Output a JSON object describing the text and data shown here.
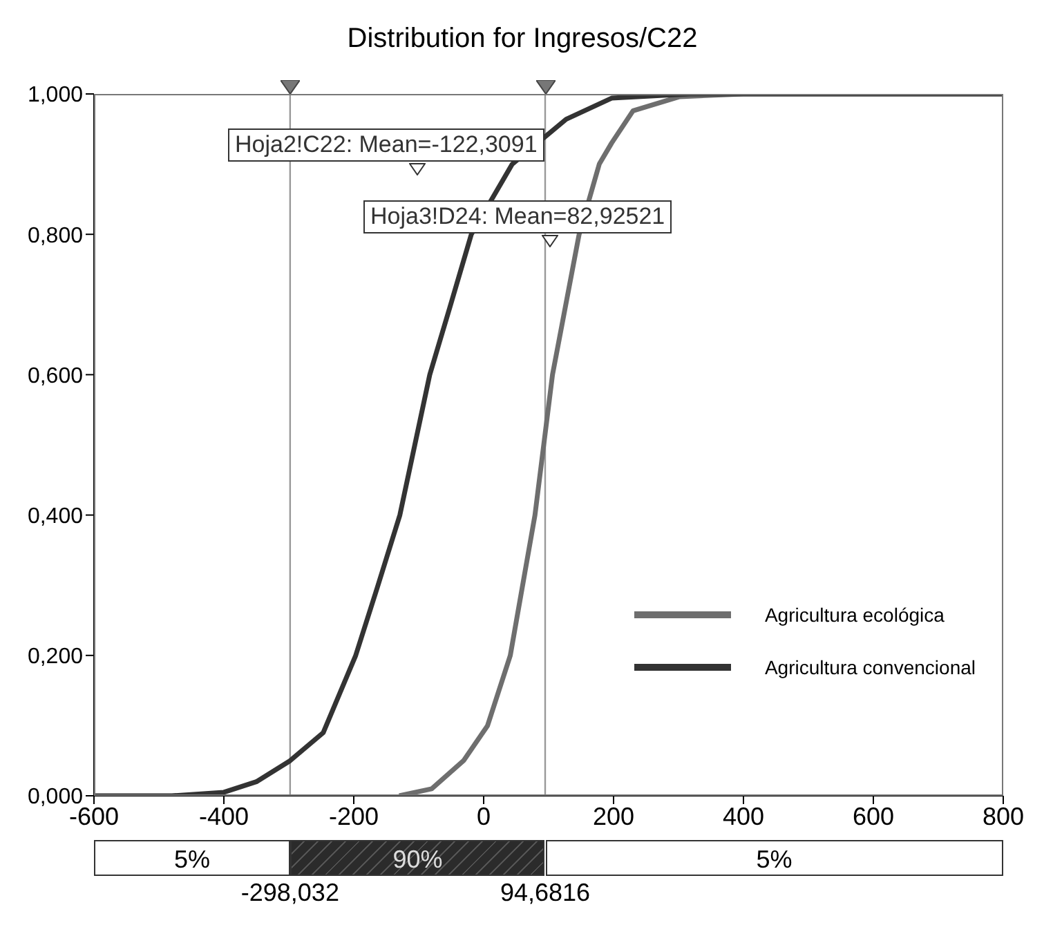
{
  "chart_data": {
    "type": "line",
    "title": "Distribution for Ingresos/C22",
    "series": [
      {
        "name": "Agricultura ecológica",
        "color": "#6e6e6e",
        "x": [
          -130,
          -80,
          -31,
          6,
          41,
          79,
          106,
          147,
          178,
          197,
          230,
          301,
          400,
          800
        ],
        "values": [
          0,
          0.01,
          0.05,
          0.1,
          0.2,
          0.4,
          0.6,
          0.8,
          0.9,
          0.93,
          0.976,
          0.996,
          1,
          1
        ]
      },
      {
        "name": "Agricultura convencional",
        "color": "#333333",
        "x": [
          -600,
          -480,
          -400,
          -350,
          -298,
          -247,
          -197,
          -164,
          -129,
          -83,
          -52,
          -19,
          44,
          127,
          197,
          317,
          400,
          800
        ],
        "values": [
          0,
          0,
          0.005,
          0.02,
          0.05,
          0.09,
          0.2,
          0.296,
          0.4,
          0.6,
          0.696,
          0.8,
          0.9,
          0.964,
          0.994,
          1,
          1,
          1
        ]
      }
    ],
    "xlim": [
      -600,
      800
    ],
    "xticks": [
      -600,
      -400,
      -200,
      0,
      200,
      400,
      600,
      800
    ],
    "ylim": [
      0,
      1
    ],
    "yticks": [
      {
        "value": 0,
        "label": "0,000"
      },
      {
        "value": 0.2,
        "label": "0,200"
      },
      {
        "value": 0.4,
        "label": "0,400"
      },
      {
        "value": 0.6,
        "label": "0,600"
      },
      {
        "value": 0.8,
        "label": "0,800"
      },
      {
        "value": 1,
        "label": "1,000"
      }
    ],
    "ref_lines": [
      {
        "axis": "x",
        "value": -298.032,
        "color": "#999999"
      },
      {
        "axis": "x",
        "value": 94.6816,
        "color": "#999999"
      }
    ],
    "annotations": [
      "5%",
      "90%",
      "5%",
      "Hoja2!C22: Mean=-122,3091",
      "Hoja3!D24: Mean=82,92521",
      "-298,032",
      "94,6816"
    ],
    "legend": "bottom right"
  }
}
